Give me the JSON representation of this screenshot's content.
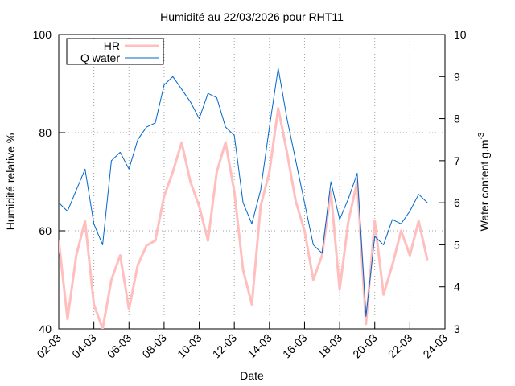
{
  "chart_data": {
    "type": "line",
    "title": "Humidité au 22/03/2026 pour RHT11",
    "xlabel": "Date",
    "ylabel": "Humidité relative %",
    "y2label": "Water content g.m",
    "y2label_sup": "-3",
    "x": [
      2.0,
      2.5,
      3.0,
      3.5,
      4.0,
      4.5,
      5.0,
      5.5,
      6.0,
      6.5,
      7.0,
      7.5,
      8.0,
      8.5,
      9.0,
      9.5,
      10.0,
      10.5,
      11.0,
      11.5,
      12.0,
      12.5,
      13.0,
      13.5,
      14.0,
      14.5,
      15.0,
      15.5,
      16.0,
      16.5,
      17.0,
      17.5,
      18.0,
      18.5,
      19.0,
      19.5,
      20.0,
      20.5,
      21.0,
      21.5,
      22.0,
      22.5,
      23.0
    ],
    "series": [
      {
        "name": "HR",
        "color": "#ffbfbf",
        "width": 3,
        "values": [
          58,
          42,
          55,
          62,
          45,
          40,
          50,
          55,
          44,
          53,
          57,
          58,
          67,
          72,
          78,
          70,
          65,
          58,
          72,
          78,
          68,
          52,
          45,
          65,
          72,
          85,
          76,
          66,
          60,
          50,
          55,
          68,
          48,
          62,
          70,
          41,
          62,
          47,
          53,
          60,
          55,
          62,
          54
        ]
      },
      {
        "name": "Q water",
        "color": "#0066cc",
        "width": 1,
        "axis": "y2",
        "values": [
          6.0,
          5.8,
          6.3,
          6.8,
          5.5,
          5.0,
          7.0,
          7.2,
          6.8,
          7.5,
          7.8,
          7.9,
          8.8,
          9.0,
          8.7,
          8.4,
          8.0,
          8.6,
          8.5,
          7.8,
          7.6,
          6.0,
          5.5,
          6.3,
          7.8,
          9.2,
          8.0,
          7.0,
          6.0,
          5.0,
          4.8,
          6.5,
          5.6,
          6.1,
          6.7,
          3.3,
          5.2,
          5.0,
          5.6,
          5.5,
          5.8,
          6.2,
          6.0
        ]
      }
    ],
    "xlim": [
      2,
      24
    ],
    "xticks": [
      {
        "value": 2,
        "label": "02-03"
      },
      {
        "value": 4,
        "label": "04-03"
      },
      {
        "value": 6,
        "label": "06-03"
      },
      {
        "value": 8,
        "label": "08-03"
      },
      {
        "value": 10,
        "label": "10-03"
      },
      {
        "value": 12,
        "label": "12-03"
      },
      {
        "value": 14,
        "label": "14-03"
      },
      {
        "value": 16,
        "label": "16-03"
      },
      {
        "value": 18,
        "label": "18-03"
      },
      {
        "value": 20,
        "label": "20-03"
      },
      {
        "value": 22,
        "label": "22-03"
      },
      {
        "value": 24,
        "label": "24-03"
      }
    ],
    "ylim": [
      40,
      100
    ],
    "yticks": [
      40,
      60,
      80,
      100
    ],
    "y2lim": [
      3,
      10
    ],
    "y2ticks": [
      3,
      4,
      5,
      6,
      7,
      8,
      9,
      10
    ],
    "grid": true,
    "legend": "top-left"
  }
}
